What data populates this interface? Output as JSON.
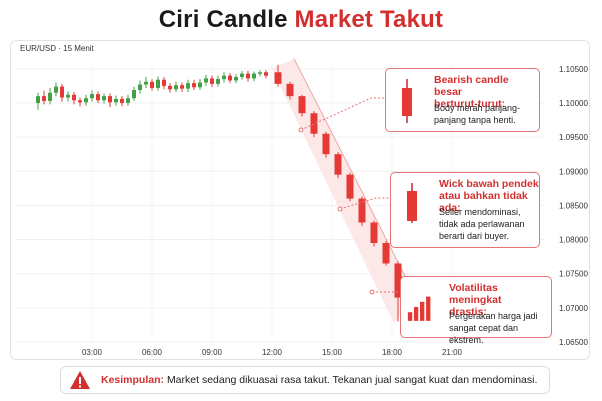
{
  "header": {
    "title_main": "Ciri Candle",
    "title_accent": "Market Takut"
  },
  "chart_data": {
    "type": "candlestick",
    "pair_label": "EUR/USD · 15 Menit",
    "x_ticks": [
      "03:00",
      "06:00",
      "09:00",
      "12:00",
      "15:00",
      "18:00",
      "21:00"
    ],
    "y_ticks": [
      "1.10500",
      "1.10000",
      "1.09500",
      "1.09000",
      "1.08500",
      "1.08000",
      "1.07500",
      "1.07000",
      "1.06500"
    ],
    "ylim": [
      1.065,
      1.106
    ],
    "candles": [
      {
        "t": 0.3,
        "o": 1.1,
        "c": 1.101,
        "h": 1.1015,
        "l": 1.099
      },
      {
        "t": 0.6,
        "o": 1.101,
        "c": 1.1003,
        "h": 1.1018,
        "l": 1.0998
      },
      {
        "t": 0.9,
        "o": 1.1003,
        "c": 1.1015,
        "h": 1.1022,
        "l": 1.0998
      },
      {
        "t": 1.2,
        "o": 1.1015,
        "c": 1.1024,
        "h": 1.103,
        "l": 1.101
      },
      {
        "t": 1.5,
        "o": 1.1024,
        "c": 1.1008,
        "h": 1.1028,
        "l": 1.1002
      },
      {
        "t": 1.8,
        "o": 1.1008,
        "c": 1.1012,
        "h": 1.1017,
        "l": 1.1002
      },
      {
        "t": 2.1,
        "o": 1.1012,
        "c": 1.1004,
        "h": 1.1016,
        "l": 1.0998
      },
      {
        "t": 2.4,
        "o": 1.1004,
        "c": 1.1001,
        "h": 1.1008,
        "l": 1.0995
      },
      {
        "t": 2.7,
        "o": 1.1001,
        "c": 1.1007,
        "h": 1.1012,
        "l": 1.0996
      },
      {
        "t": 3.0,
        "o": 1.1007,
        "c": 1.1013,
        "h": 1.1018,
        "l": 1.1002
      },
      {
        "t": 3.3,
        "o": 1.1013,
        "c": 1.1004,
        "h": 1.1017,
        "l": 1.1
      },
      {
        "t": 3.6,
        "o": 1.1004,
        "c": 1.101,
        "h": 1.1014,
        "l": 1.0999
      },
      {
        "t": 3.9,
        "o": 1.101,
        "c": 1.1001,
        "h": 1.1014,
        "l": 1.0994
      },
      {
        "t": 4.2,
        "o": 1.1001,
        "c": 1.1006,
        "h": 1.1011,
        "l": 1.0996
      },
      {
        "t": 4.5,
        "o": 1.1006,
        "c": 1.1,
        "h": 1.101,
        "l": 1.0995
      },
      {
        "t": 4.8,
        "o": 1.1,
        "c": 1.1007,
        "h": 1.1012,
        "l": 1.0996
      },
      {
        "t": 5.1,
        "o": 1.1007,
        "c": 1.1019,
        "h": 1.1024,
        "l": 1.1003
      },
      {
        "t": 5.4,
        "o": 1.1019,
        "c": 1.1027,
        "h": 1.1033,
        "l": 1.1014
      },
      {
        "t": 5.7,
        "o": 1.1027,
        "c": 1.1031,
        "h": 1.1038,
        "l": 1.1022
      },
      {
        "t": 6.0,
        "o": 1.1031,
        "c": 1.1022,
        "h": 1.1035,
        "l": 1.1018
      },
      {
        "t": 6.3,
        "o": 1.1022,
        "c": 1.1034,
        "h": 1.1039,
        "l": 1.1018
      },
      {
        "t": 6.6,
        "o": 1.1034,
        "c": 1.1025,
        "h": 1.1038,
        "l": 1.102
      },
      {
        "t": 6.9,
        "o": 1.1025,
        "c": 1.102,
        "h": 1.1029,
        "l": 1.1015
      },
      {
        "t": 7.2,
        "o": 1.102,
        "c": 1.1026,
        "h": 1.1031,
        "l": 1.1016
      },
      {
        "t": 7.5,
        "o": 1.1026,
        "c": 1.1021,
        "h": 1.103,
        "l": 1.1016
      },
      {
        "t": 7.8,
        "o": 1.1021,
        "c": 1.1029,
        "h": 1.1034,
        "l": 1.1016
      },
      {
        "t": 8.1,
        "o": 1.1029,
        "c": 1.1023,
        "h": 1.1034,
        "l": 1.1019
      },
      {
        "t": 8.4,
        "o": 1.1023,
        "c": 1.103,
        "h": 1.1035,
        "l": 1.1019
      },
      {
        "t": 8.7,
        "o": 1.103,
        "c": 1.1036,
        "h": 1.1041,
        "l": 1.1025
      },
      {
        "t": 9.0,
        "o": 1.1036,
        "c": 1.1028,
        "h": 1.104,
        "l": 1.1023
      },
      {
        "t": 9.3,
        "o": 1.1028,
        "c": 1.1035,
        "h": 1.104,
        "l": 1.1024
      },
      {
        "t": 9.6,
        "o": 1.1035,
        "c": 1.104,
        "h": 1.1045,
        "l": 1.103
      },
      {
        "t": 9.9,
        "o": 1.104,
        "c": 1.1033,
        "h": 1.1044,
        "l": 1.1029
      },
      {
        "t": 10.2,
        "o": 1.1033,
        "c": 1.1038,
        "h": 1.1042,
        "l": 1.1029
      },
      {
        "t": 10.5,
        "o": 1.1038,
        "c": 1.1043,
        "h": 1.1047,
        "l": 1.1034
      },
      {
        "t": 10.8,
        "o": 1.1043,
        "c": 1.1036,
        "h": 1.1047,
        "l": 1.1031
      },
      {
        "t": 11.1,
        "o": 1.1036,
        "c": 1.1043,
        "h": 1.1046,
        "l": 1.1032
      },
      {
        "t": 11.4,
        "o": 1.1043,
        "c": 1.1045,
        "h": 1.1048,
        "l": 1.1039
      },
      {
        "t": 11.7,
        "o": 1.1045,
        "c": 1.104,
        "h": 1.1048,
        "l": 1.1036
      },
      {
        "t": 12.3,
        "o": 1.1045,
        "c": 1.1028,
        "h": 1.1056,
        "l": 1.1024
      },
      {
        "t": 12.9,
        "o": 1.1028,
        "c": 1.101,
        "h": 1.1031,
        "l": 1.1005
      },
      {
        "t": 13.5,
        "o": 1.101,
        "c": 1.0985,
        "h": 1.1012,
        "l": 1.098
      },
      {
        "t": 14.1,
        "o": 1.0985,
        "c": 1.0955,
        "h": 1.0988,
        "l": 1.095
      },
      {
        "t": 14.7,
        "o": 1.0955,
        "c": 1.0925,
        "h": 1.0958,
        "l": 1.092
      },
      {
        "t": 15.3,
        "o": 1.0925,
        "c": 1.0895,
        "h": 1.0928,
        "l": 1.089
      },
      {
        "t": 15.9,
        "o": 1.0895,
        "c": 1.086,
        "h": 1.0898,
        "l": 1.0856
      },
      {
        "t": 16.5,
        "o": 1.086,
        "c": 1.0825,
        "h": 1.0863,
        "l": 1.082
      },
      {
        "t": 17.1,
        "o": 1.0825,
        "c": 1.0795,
        "h": 1.0828,
        "l": 1.079
      },
      {
        "t": 17.7,
        "o": 1.0795,
        "c": 1.0765,
        "h": 1.0798,
        "l": 1.0762
      },
      {
        "t": 18.3,
        "o": 1.0765,
        "c": 1.0715,
        "h": 1.0768,
        "l": 1.068
      }
    ]
  },
  "callouts": [
    {
      "heading": [
        "Bearish candle besar",
        "berturut-turut:"
      ],
      "body": [
        "Body merah panjang-",
        "panjang tanpa henti."
      ],
      "icon": "red-candle-icon"
    },
    {
      "heading": [
        "Wick bawah pendek",
        "atau bahkan tidak ada:"
      ],
      "body": [
        "Seller mendominasi,",
        "tidak ada perlawanan",
        "berarti dari buyer."
      ],
      "icon": "red-candle-short-wick-icon"
    },
    {
      "heading": [
        "Volatilitas meningkat",
        "drastis:"
      ],
      "body": [
        "Pergerakan harga jadi",
        "sangat cepat dan ekstrem."
      ],
      "icon": "rising-bars-icon"
    }
  ],
  "conclusion": {
    "label": "Kesimpulan:",
    "text": "Market sedang dikuasai rasa takut. Tekanan jual sangat kuat dan mendominasi.",
    "icon": "warning-icon"
  },
  "colors": {
    "bull": "#43a047",
    "bear": "#e53935",
    "accent": "#d32f2f",
    "trend_band": "#fde4e4"
  }
}
